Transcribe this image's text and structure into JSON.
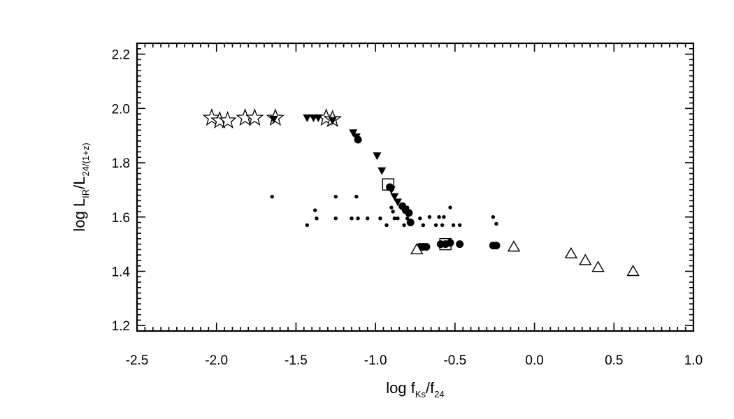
{
  "chart_data": {
    "type": "scatter",
    "xlabel": {
      "main": "log f",
      "sub1": "Ks",
      "mid": "/f",
      "sub2": "24"
    },
    "ylabel": {
      "main": "log L",
      "sub1": "IR",
      "mid": "/L",
      "sub2": "24/(1+z)"
    },
    "xlim": [
      -2.5,
      1.0
    ],
    "ylim": [
      1.18,
      2.24
    ],
    "xticks": [
      "-2.5",
      "-2.0",
      "-1.5",
      "-1.0",
      "-0.5",
      "0.0",
      "0.5",
      "1.0"
    ],
    "yticks": [
      "1.2",
      "1.4",
      "1.6",
      "1.8",
      "2.0",
      "2.2"
    ],
    "grid": false,
    "series": [
      {
        "marker": "star",
        "points": [
          [
            -2.03,
            1.965
          ],
          [
            -1.98,
            1.955
          ],
          [
            -1.93,
            1.955
          ],
          [
            -1.82,
            1.965
          ],
          [
            -1.76,
            1.965
          ],
          [
            -1.63,
            1.965
          ],
          [
            -1.31,
            1.965
          ],
          [
            -1.27,
            1.96
          ]
        ]
      },
      {
        "marker": "filled-triangle-down",
        "points": [
          [
            -1.64,
            1.96
          ],
          [
            -1.43,
            1.965
          ],
          [
            -1.39,
            1.965
          ],
          [
            -1.36,
            1.965
          ],
          [
            -1.27,
            1.955
          ],
          [
            -1.14,
            1.91
          ],
          [
            -1.12,
            1.895
          ],
          [
            -0.99,
            1.825
          ],
          [
            -0.96,
            1.77
          ],
          [
            -0.9,
            1.7
          ],
          [
            -0.88,
            1.675
          ],
          [
            -0.86,
            1.655
          ]
        ]
      },
      {
        "marker": "filled-circle",
        "points": [
          [
            -1.11,
            1.885
          ],
          [
            -0.91,
            1.71
          ],
          [
            -0.83,
            1.64
          ],
          [
            -0.81,
            1.625
          ],
          [
            -0.79,
            1.615
          ],
          [
            -0.78,
            1.58
          ],
          [
            -0.72,
            1.49
          ],
          [
            -0.7,
            1.49
          ],
          [
            -0.68,
            1.49
          ],
          [
            -0.59,
            1.5
          ],
          [
            -0.56,
            1.5
          ],
          [
            -0.53,
            1.505
          ],
          [
            -0.47,
            1.5
          ],
          [
            -0.26,
            1.495
          ],
          [
            -0.24,
            1.495
          ]
        ]
      },
      {
        "marker": "small-dot",
        "points": [
          [
            -1.65,
            1.675
          ],
          [
            -1.43,
            1.57
          ],
          [
            -1.38,
            1.625
          ],
          [
            -1.37,
            1.595
          ],
          [
            -1.25,
            1.675
          ],
          [
            -1.25,
            1.595
          ],
          [
            -1.15,
            1.595
          ],
          [
            -1.12,
            1.675
          ],
          [
            -1.11,
            1.595
          ],
          [
            -1.05,
            1.595
          ],
          [
            -0.97,
            1.595
          ],
          [
            -0.93,
            1.57
          ],
          [
            -0.9,
            1.635
          ],
          [
            -0.89,
            1.62
          ],
          [
            -0.88,
            1.595
          ],
          [
            -0.86,
            1.595
          ],
          [
            -0.82,
            1.57
          ],
          [
            -0.8,
            1.635
          ],
          [
            -0.8,
            1.595
          ],
          [
            -0.72,
            1.595
          ],
          [
            -0.7,
            1.57
          ],
          [
            -0.66,
            1.6
          ],
          [
            -0.62,
            1.57
          ],
          [
            -0.6,
            1.6
          ],
          [
            -0.58,
            1.57
          ],
          [
            -0.57,
            1.6
          ],
          [
            -0.53,
            1.635
          ],
          [
            -0.51,
            1.57
          ],
          [
            -0.47,
            1.57
          ],
          [
            -0.26,
            1.6
          ],
          [
            -0.24,
            1.575
          ]
        ]
      },
      {
        "marker": "open-square",
        "points": [
          [
            -0.92,
            1.72
          ],
          [
            -0.56,
            1.5
          ]
        ]
      },
      {
        "marker": "open-triangle",
        "points": [
          [
            -0.74,
            1.48
          ],
          [
            -0.13,
            1.49
          ],
          [
            0.23,
            1.465
          ],
          [
            0.32,
            1.44
          ],
          [
            0.4,
            1.415
          ],
          [
            0.62,
            1.4
          ]
        ]
      }
    ]
  }
}
